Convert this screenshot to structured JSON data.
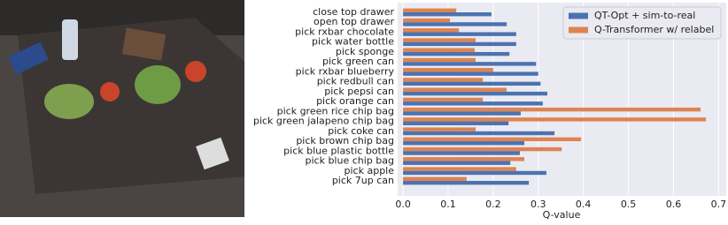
{
  "chart_data": {
    "type": "barh",
    "xlabel": "Q-value",
    "categories": [
      "close top drawer",
      "open top drawer",
      "pick rxbar chocolate",
      "pick water bottle",
      "pick sponge",
      "pick green can",
      "pick rxbar blueberry",
      "pick redbull can",
      "pick pepsi can",
      "pick orange can",
      "pick green rice chip bag",
      "pick green jalapeno chip bag",
      "pick coke can",
      "pick brown chip bag",
      "pick blue plastic bottle",
      "pick blue chip bag",
      "pick apple",
      "pick 7up can"
    ],
    "series": [
      {
        "name": "QT-Opt + sim-to-real",
        "color": "#4c72b0",
        "values": [
          0.196,
          0.23,
          0.251,
          0.251,
          0.236,
          0.295,
          0.3,
          0.305,
          0.32,
          0.31,
          0.261,
          0.234,
          0.336,
          0.269,
          0.259,
          0.238,
          0.318,
          0.279
        ]
      },
      {
        "name": "Q-Transformer w/ relabel",
        "color": "#dd8452",
        "values": [
          0.118,
          0.104,
          0.124,
          0.161,
          0.159,
          0.161,
          0.2,
          0.177,
          0.23,
          0.177,
          0.66,
          0.672,
          0.161,
          0.395,
          0.352,
          0.269,
          0.251,
          0.141
        ]
      }
    ],
    "xlim": [
      -0.012,
      0.717
    ],
    "xticks": [
      {
        "value": 0,
        "label": "0.0"
      },
      0.1,
      0.2,
      0.3,
      0.4,
      0.5,
      0.6,
      0.7
    ],
    "grid": true,
    "legend": "upper right"
  }
}
